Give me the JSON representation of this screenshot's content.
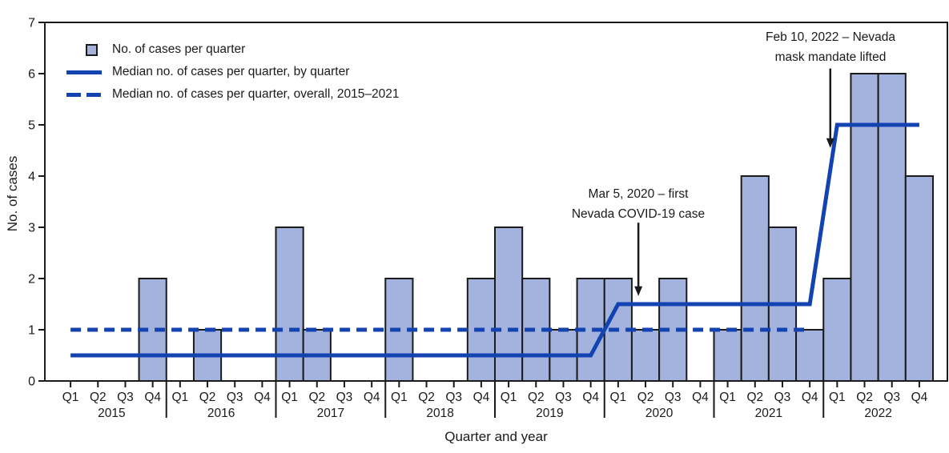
{
  "figure": {
    "background": "#ffffff"
  },
  "colors": {
    "bar_fill": "#a3b3de",
    "bar_border": "#1a1a1a",
    "median_line": "#1243b0",
    "axis": "#1a1a1a",
    "text": "#1a1a1a"
  },
  "legend": {
    "items": [
      {
        "swatch": "bar-square",
        "label": "No. of cases per quarter"
      },
      {
        "swatch": "solid-line",
        "label": "Median no. of cases per quarter, by quarter"
      },
      {
        "swatch": "dashed-line",
        "label": "Median no. of cases per quarter, overall, 2015–2021"
      }
    ]
  },
  "annotations": [
    {
      "line1": "Mar 5, 2020 – first",
      "line2": "Nevada COVID-19 case",
      "arrow": {
        "x_quarters": 20.74,
        "value_start": 3.09,
        "value_end": 1.66
      }
    },
    {
      "line1": "Feb 10, 2022 – Nevada",
      "line2": "mask mandate lifted",
      "arrow": {
        "x_quarters": 27.75,
        "value_start": 6.1,
        "value_end": 4.55
      }
    }
  ],
  "chart_data": {
    "type": "bar",
    "title": "",
    "xlabel": "Quarter and year",
    "ylabel": "No. of cases",
    "ylim": [
      0,
      7
    ],
    "yticks": [
      0,
      1,
      2,
      3,
      4,
      5,
      6,
      7
    ],
    "grid": false,
    "legend_position": "top-left",
    "quarters": [
      "Q1",
      "Q2",
      "Q3",
      "Q4"
    ],
    "years": [
      "2015",
      "2016",
      "2017",
      "2018",
      "2019",
      "2020",
      "2021",
      "2022"
    ],
    "series": [
      {
        "name": "No. of cases per quarter",
        "type": "bar",
        "values": [
          0,
          0,
          0,
          2,
          0,
          1,
          0,
          0,
          3,
          1,
          0,
          0,
          2,
          0,
          0,
          2,
          3,
          2,
          1,
          2,
          2,
          1,
          2,
          0,
          1,
          4,
          3,
          1,
          2,
          6,
          6,
          4
        ]
      },
      {
        "name": "Median no. of cases per quarter, by quarter",
        "type": "line",
        "style": "solid",
        "vertices": [
          [
            0,
            0.5
          ],
          [
            19,
            0.5
          ],
          [
            20,
            1.5
          ],
          [
            27,
            1.5
          ],
          [
            28,
            5
          ],
          [
            31,
            5
          ]
        ]
      },
      {
        "name": "Median no. of cases per quarter, overall, 2015–2021",
        "type": "line",
        "style": "dashed",
        "vertices": [
          [
            0,
            1
          ],
          [
            27,
            1
          ]
        ]
      }
    ]
  }
}
